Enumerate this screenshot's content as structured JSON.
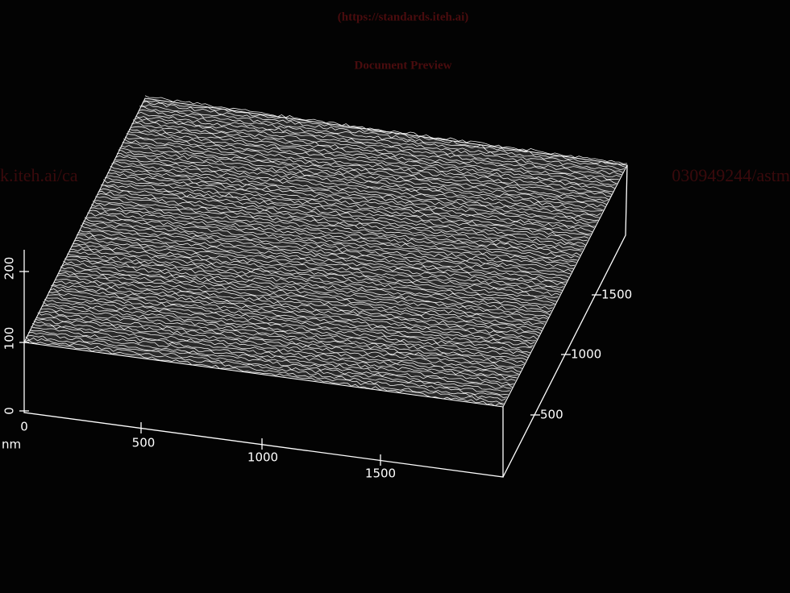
{
  "watermark": {
    "url": "(https://standards.iteh.ai)",
    "preview": "Document Preview",
    "link_left": "k.iteh.ai/ca",
    "link_right": "030949244/astm"
  },
  "axes": {
    "z": {
      "ticks": [
        "0",
        "100",
        "200"
      ]
    },
    "x": {
      "ticks": [
        "0",
        "500",
        "1000",
        "1500"
      ],
      "unit": "nm"
    },
    "y": {
      "ticks": [
        "500",
        "1000",
        "1500"
      ]
    }
  }
}
